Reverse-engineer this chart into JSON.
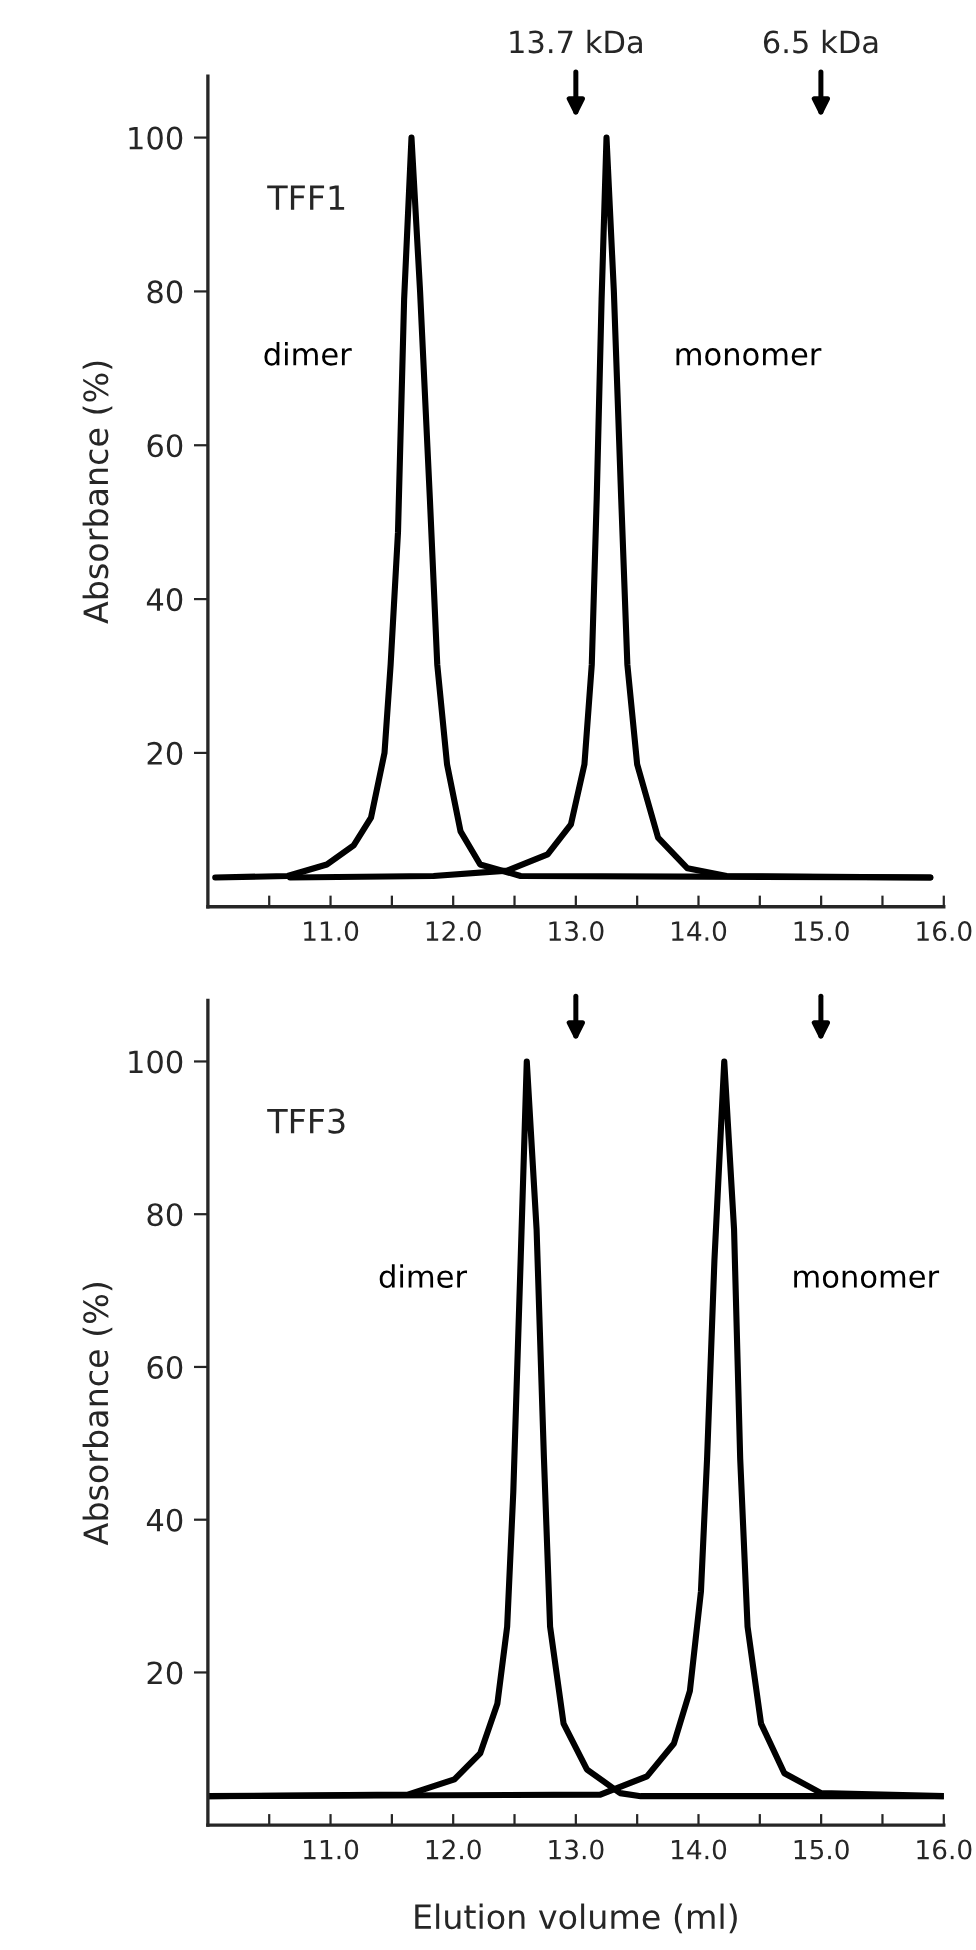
{
  "chart_data": [
    {
      "type": "line",
      "title": "TFF1",
      "xlim": [
        10,
        16
      ],
      "ylim": [
        0,
        108
      ],
      "xticks": [
        {
          "value": 10.5,
          "label": null
        },
        {
          "value": 11.0,
          "label": "11.0"
        },
        {
          "value": 11.5,
          "label": null
        },
        {
          "value": 12.0,
          "label": "12.0"
        },
        {
          "value": 12.5,
          "label": null
        },
        {
          "value": 13.0,
          "label": "13.0"
        },
        {
          "value": 13.5,
          "label": null
        },
        {
          "value": 14.0,
          "label": "14.0"
        },
        {
          "value": 14.5,
          "label": null
        },
        {
          "value": 15.0,
          "label": "15.0"
        },
        {
          "value": 15.5,
          "label": null
        },
        {
          "value": 16.0,
          "label": "16.0"
        }
      ],
      "yticks": [
        20,
        40,
        60,
        80,
        100
      ],
      "ylabel": "Absorbance (%)",
      "grid": false,
      "legend": false,
      "marker": "none",
      "line_style": "solid",
      "series": [
        {
          "name": "dimer",
          "color": "#000000",
          "x": [
            10.06,
            10.65,
            10.97,
            11.19,
            11.33,
            11.44,
            11.49,
            11.55,
            11.6,
            11.66,
            11.73,
            11.81,
            11.87,
            11.95,
            12.06,
            12.22,
            12.55,
            15.89
          ],
          "values": [
            3.8,
            4,
            5.5,
            8,
            11.6,
            20,
            31.5,
            48.7,
            79,
            100,
            80,
            53,
            31.5,
            18.5,
            9.8,
            5.5,
            4,
            3.8
          ]
        },
        {
          "name": "monomer",
          "color": "#000000",
          "x": [
            10.67,
            11.84,
            12.44,
            12.77,
            12.96,
            13.07,
            13.13,
            13.17,
            13.21,
            13.25,
            13.31,
            13.37,
            13.42,
            13.5,
            13.67,
            13.91,
            14.23,
            15.89
          ],
          "values": [
            3.8,
            4,
            4.7,
            6.8,
            10.7,
            18.5,
            31.5,
            53,
            79,
            100,
            80,
            53,
            31.5,
            18.5,
            9,
            5,
            4,
            3.8
          ]
        }
      ],
      "annotations": [
        "13.7 kDa",
        "6.5 kDa"
      ]
    },
    {
      "type": "line",
      "title": "TFF3",
      "xlim": [
        10,
        16
      ],
      "ylim": [
        0,
        108
      ],
      "xticks": [
        {
          "value": 10.5,
          "label": null
        },
        {
          "value": 11.0,
          "label": "11.0"
        },
        {
          "value": 11.5,
          "label": null
        },
        {
          "value": 12.0,
          "label": "12.0"
        },
        {
          "value": 12.5,
          "label": null
        },
        {
          "value": 13.0,
          "label": "13.0"
        },
        {
          "value": 13.5,
          "label": null
        },
        {
          "value": 14.0,
          "label": "14.0"
        },
        {
          "value": 14.5,
          "label": null
        },
        {
          "value": 15.0,
          "label": "15.0"
        },
        {
          "value": 15.5,
          "label": null
        },
        {
          "value": 16.0,
          "label": "16.0"
        }
      ],
      "yticks": [
        20,
        40,
        60,
        80,
        100
      ],
      "ylabel": "Absorbance (%)",
      "xlabel": "Elution volume (ml)",
      "grid": false,
      "legend": false,
      "marker": "none",
      "line_style": "solid",
      "series": [
        {
          "name": "dimer",
          "color": "#000000",
          "x": [
            10.0,
            11.63,
            12.01,
            12.22,
            12.36,
            12.44,
            12.49,
            12.55,
            12.6,
            12.68,
            12.74,
            12.79,
            12.9,
            13.09,
            13.36,
            13.53,
            16.0
          ],
          "values": [
            3.8,
            4,
            6,
            9.4,
            15.9,
            26,
            43.6,
            74,
            100,
            78,
            48,
            26,
            13.3,
            7.3,
            4.2,
            3.8,
            3.8
          ]
        },
        {
          "name": "monomer",
          "color": "#000000",
          "x": [
            10.0,
            13.2,
            13.58,
            13.8,
            13.93,
            14.02,
            14.07,
            14.13,
            14.21,
            14.29,
            14.34,
            14.4,
            14.51,
            14.7,
            15.0,
            16.0
          ],
          "values": [
            3.8,
            4,
            6.4,
            10.7,
            17.6,
            30.6,
            48,
            74,
            100,
            78,
            48,
            26,
            13.3,
            6.8,
            4.2,
            3.8
          ]
        }
      ]
    }
  ]
}
